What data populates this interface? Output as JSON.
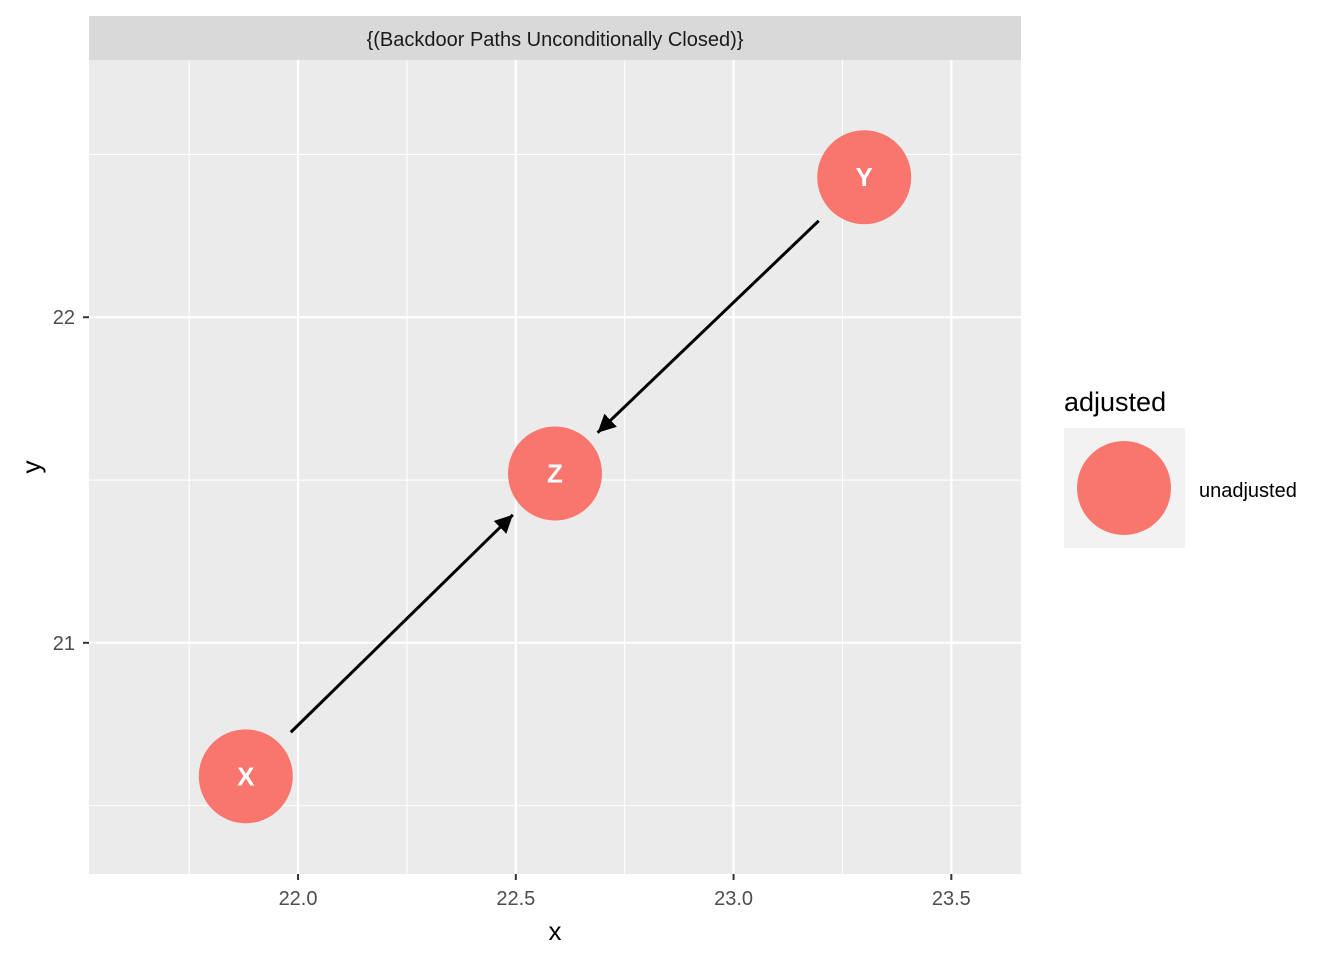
{
  "facet_strip": "{(Backdoor Paths Unconditionally Closed)}",
  "axes": {
    "xlabel": "x",
    "ylabel": "y",
    "xlim": [
      21.52,
      23.66
    ],
    "ylim": [
      20.29,
      22.79
    ],
    "x_major_ticks": [
      22.0,
      22.5,
      23.0,
      23.5
    ],
    "x_tick_labels": [
      "22.0",
      "22.5",
      "23.0",
      "23.5"
    ],
    "x_minor_ticks": [
      21.75,
      22.25,
      22.75,
      23.25
    ],
    "y_major_ticks": [
      21,
      22
    ],
    "y_tick_labels": [
      "21",
      "22"
    ],
    "y_minor_ticks": [
      20.5,
      21.5,
      22.5
    ]
  },
  "nodes": [
    {
      "name": "X",
      "x": 21.88,
      "y": 20.59,
      "adjusted": "unadjusted"
    },
    {
      "name": "Z",
      "x": 22.59,
      "y": 21.52,
      "adjusted": "unadjusted"
    },
    {
      "name": "Y",
      "x": 23.3,
      "y": 22.43,
      "adjusted": "unadjusted"
    }
  ],
  "edges": [
    {
      "from": "X",
      "to": "Z"
    },
    {
      "from": "Y",
      "to": "Z"
    }
  ],
  "legend": {
    "title": "adjusted",
    "items": [
      {
        "label": "unadjusted",
        "color": "#F8766D"
      }
    ]
  },
  "colors": {
    "panel_background": "#EBEBEB",
    "grid": "#FFFFFF",
    "strip_background": "#D9D9D9",
    "node_fill": "#F8766D",
    "edge": "#000000"
  }
}
